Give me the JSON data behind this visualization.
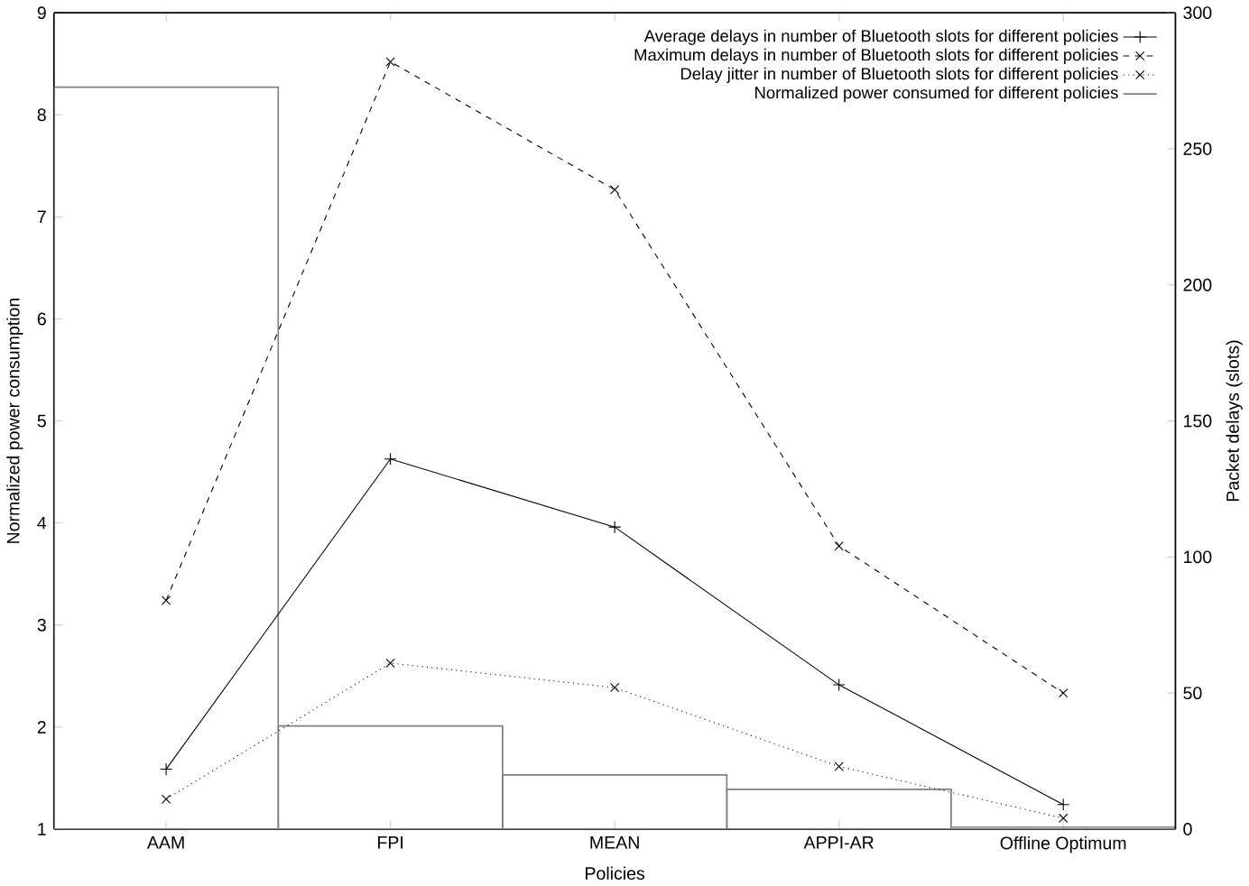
{
  "chart_data": {
    "type": "line",
    "xlabel": "Policies",
    "ylabel": "Normalized power consumption",
    "y2label": "Packet delays (slots)",
    "categories": [
      "AAM",
      "FPI",
      "MEAN",
      "APPI-AR",
      "Offline Optimum"
    ],
    "ylim": [
      1,
      9
    ],
    "yticks": [
      1,
      2,
      3,
      4,
      5,
      6,
      7,
      8,
      9
    ],
    "y2lim": [
      0,
      300
    ],
    "y2ticks": [
      0,
      50,
      100,
      150,
      200,
      250,
      300
    ],
    "legend": "top right",
    "grid": false,
    "series": [
      {
        "name": "Average delays in number of Bluetooth slots for different policies",
        "axis": "y2",
        "color": "#000000",
        "marker": "plus",
        "line_style": "solid",
        "values": [
          22,
          136,
          111,
          53,
          9
        ]
      },
      {
        "name": "Maximum delays in number of Bluetooth slots for different policies",
        "axis": "y2",
        "color": "#000000",
        "marker": "cross",
        "line_style": "dashed",
        "values": [
          84,
          282,
          235,
          104,
          50
        ]
      },
      {
        "name": "Delay jitter in number of Bluetooth slots for different policies",
        "axis": "y2",
        "color": "#000000",
        "marker": "cross",
        "line_style": "dotted",
        "values": [
          11,
          61,
          52,
          23,
          4
        ]
      },
      {
        "name": "Normalized power consumed for different policies",
        "type": "bar",
        "axis": "y",
        "color": "#808080",
        "values": [
          8.27,
          2.01,
          1.53,
          1.39,
          1.02
        ]
      }
    ]
  }
}
